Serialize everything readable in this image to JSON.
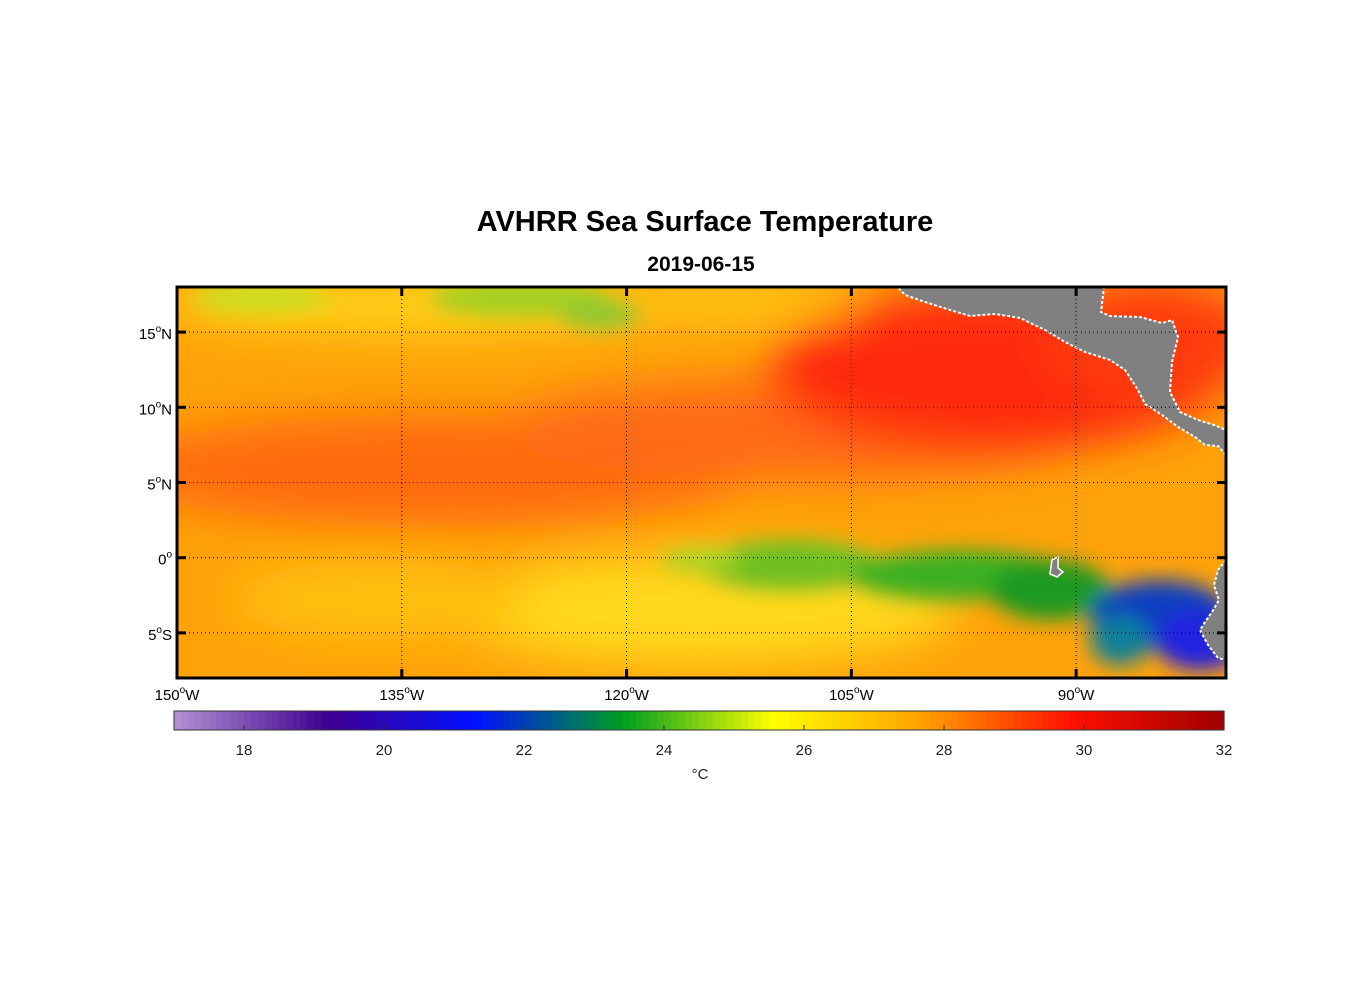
{
  "map": {
    "title": "AVHRR Sea Surface Temperature",
    "subtitle": "2019-06-15",
    "lon_range": [
      -150,
      -80
    ],
    "lat_range": [
      -8,
      18
    ],
    "lat_ticks": [
      {
        "value": 15,
        "label": "15",
        "hemi": "N"
      },
      {
        "value": 10,
        "label": "10",
        "hemi": "N"
      },
      {
        "value": 5,
        "label": "5",
        "hemi": "N"
      },
      {
        "value": 0,
        "label": "0",
        "hemi": ""
      },
      {
        "value": -5,
        "label": "5",
        "hemi": "S"
      }
    ],
    "lon_ticks": [
      {
        "value": -150,
        "label": "150",
        "hemi": "W"
      },
      {
        "value": -135,
        "label": "135",
        "hemi": "W"
      },
      {
        "value": -120,
        "label": "120",
        "hemi": "W"
      },
      {
        "value": -105,
        "label": "105",
        "hemi": "W"
      },
      {
        "value": -90,
        "label": "90",
        "hemi": "W"
      }
    ],
    "grid": true,
    "land_color": "#808080"
  },
  "colorbar": {
    "min": 17,
    "max": 32,
    "ticks": [
      18,
      20,
      22,
      24,
      26,
      28,
      30,
      32
    ],
    "unit": "°C",
    "colormap": [
      "#b08fd0",
      "#400090",
      "#0010ff",
      "#00a020",
      "#ffff00",
      "#ffa000",
      "#ff1000",
      "#a00000"
    ]
  }
}
